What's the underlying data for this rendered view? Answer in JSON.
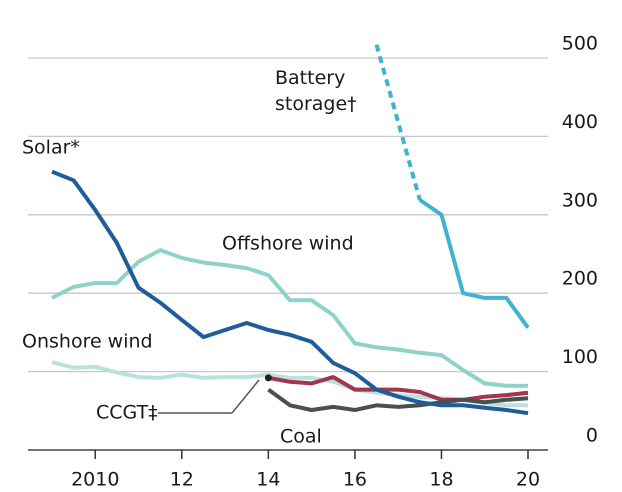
{
  "chart_data": {
    "type": "line",
    "x": [
      2009,
      2009.5,
      2010,
      2010.5,
      2011,
      2011.5,
      2012,
      2012.5,
      2013,
      2013.5,
      2014,
      2014.5,
      2015,
      2015.5,
      2016,
      2016.5,
      2017,
      2017.5,
      2018,
      2018.5,
      2019,
      2019.5,
      2020
    ],
    "series": [
      {
        "name": "Offshore wind",
        "color": "#8fd3c8",
        "values": [
          194,
          208,
          213,
          213,
          240,
          255,
          245,
          239,
          236,
          232,
          223,
          191,
          191,
          172,
          136,
          131,
          128,
          124,
          121,
          102,
          85,
          82,
          82
        ]
      },
      {
        "name": "Onshore wind",
        "color": "#b9e2de",
        "values": [
          112,
          105,
          106,
          99,
          93,
          92,
          96,
          92,
          93,
          93,
          96,
          92,
          92,
          87,
          77,
          73,
          70,
          68,
          66,
          64,
          60,
          57,
          57
        ]
      },
      {
        "name": "CCGT‡",
        "color": "#a3364a",
        "values": [
          null,
          null,
          null,
          null,
          null,
          null,
          null,
          null,
          null,
          null,
          92,
          87,
          85,
          93,
          77,
          77,
          77,
          74,
          64,
          64,
          68,
          70,
          73
        ]
      },
      {
        "name": "Coal",
        "color": "#4a4f4f",
        "values": [
          null,
          null,
          null,
          null,
          null,
          null,
          null,
          null,
          null,
          null,
          77,
          57,
          51,
          55,
          51,
          57,
          55,
          57,
          61,
          64,
          61,
          64,
          66
        ]
      },
      {
        "name": "Solar*",
        "color": "#1f5c99",
        "values": [
          355,
          344,
          306,
          264,
          207,
          188,
          166,
          144,
          153,
          162,
          153,
          147,
          138,
          111,
          98,
          77,
          68,
          61,
          57,
          57,
          54,
          51,
          47
        ]
      },
      {
        "name": "Battery storage†",
        "color": "#3fb4d0",
        "dashed_to": 2017.5,
        "values": [
          null,
          null,
          null,
          null,
          null,
          null,
          null,
          null,
          null,
          null,
          null,
          null,
          null,
          null,
          null,
          517,
          418,
          319,
          300,
          200,
          194,
          194,
          156
        ]
      }
    ],
    "xlim": [
      2009,
      2020
    ],
    "xticks": [
      2010,
      {
        "value": 2012,
        "label": "12"
      },
      {
        "value": 2014,
        "label": "14"
      },
      {
        "value": 2016,
        "label": "16"
      },
      {
        "value": 2018,
        "label": "18"
      },
      {
        "value": 2020,
        "label": "20"
      }
    ],
    "ylim": [
      0,
      500
    ],
    "yticks": [
      0,
      100,
      200,
      300,
      400,
      500
    ],
    "grid": true
  }
}
